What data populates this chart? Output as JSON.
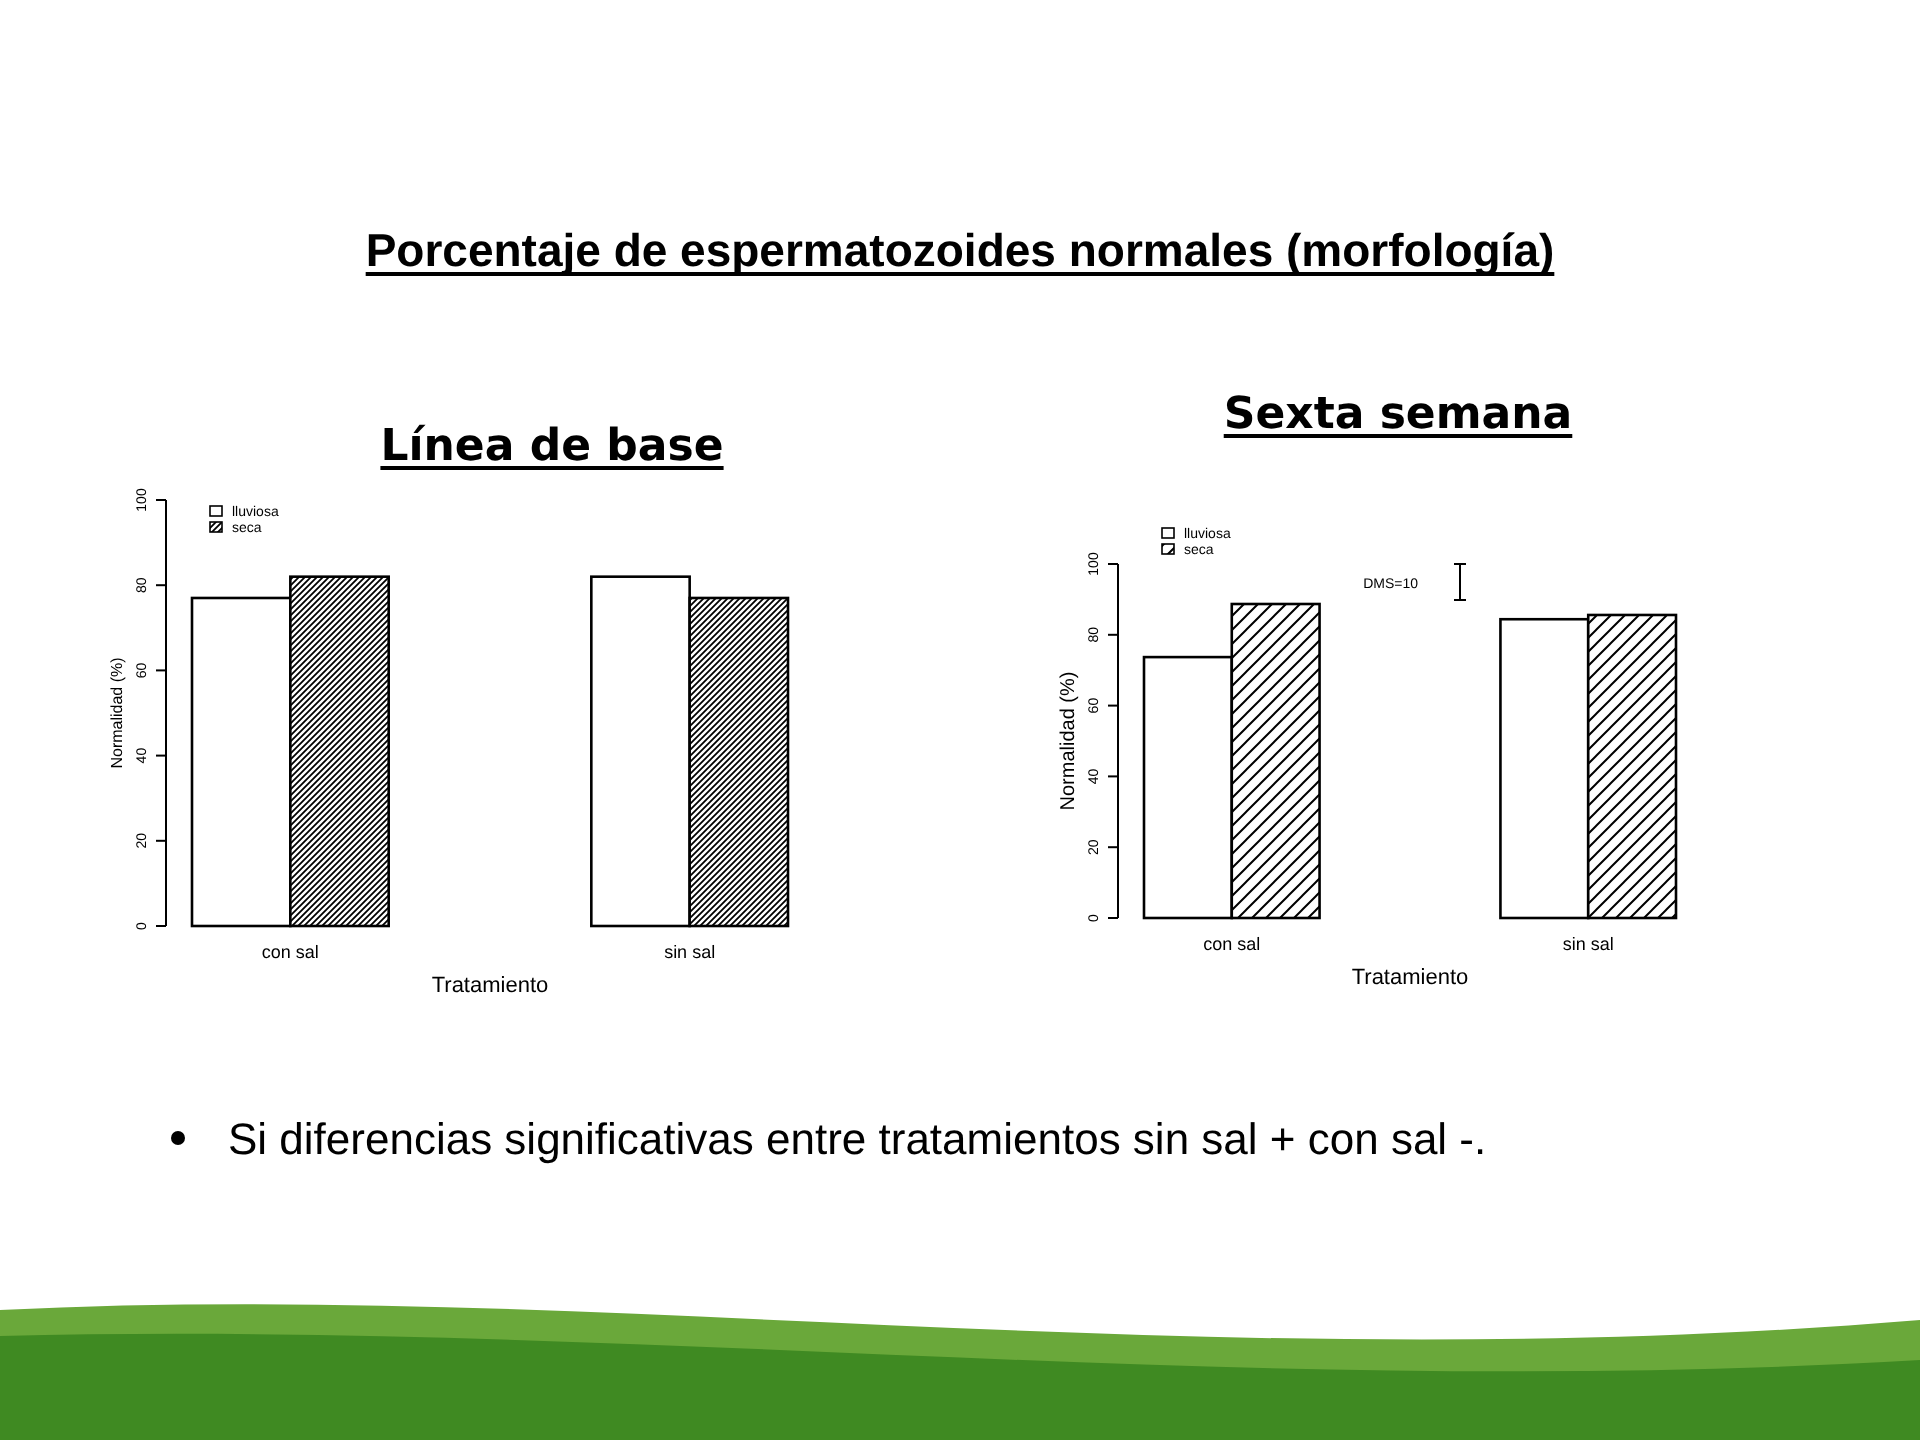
{
  "chart_data": [
    {
      "type": "bar",
      "title": "Línea de base",
      "xlabel": "Tratamiento",
      "ylabel": "Normalidad (%)",
      "categories": [
        "con sal",
        "sin sal"
      ],
      "ylim": [
        0,
        100
      ],
      "yticks": [
        0,
        20,
        40,
        60,
        80,
        100
      ],
      "grid": false,
      "legend": "top left",
      "series": [
        {
          "name": "lluviosa",
          "color": "#ffffff",
          "values": [
            77,
            82
          ]
        },
        {
          "name": "seca",
          "color": "#000000",
          "values": [
            82,
            77
          ]
        }
      ],
      "annotations": [
        "Porcentaje de espermatozoides normales (morfología)",
        "Si diferencias significativas entre tratamientos sin sal + con sal -."
      ]
    },
    {
      "type": "bar",
      "title": "Sexta semana",
      "xlabel": "Tratamiento",
      "ylabel": "Normalidad (%)",
      "categories": [
        "con sal",
        "sin sal"
      ],
      "ylim": [
        0,
        100
      ],
      "yticks": [
        0,
        20,
        40,
        60,
        80,
        100
      ],
      "grid": false,
      "legend": "top left",
      "series": [
        {
          "name": "lluviosa",
          "color": "#ffffff",
          "values": [
            73.7,
            84.4
          ]
        },
        {
          "name": "seca",
          "color": "#000000",
          "values": [
            88.7,
            85.6
          ]
        }
      ],
      "annotations": [
        "DMS=10"
      ]
    }
  ]
}
